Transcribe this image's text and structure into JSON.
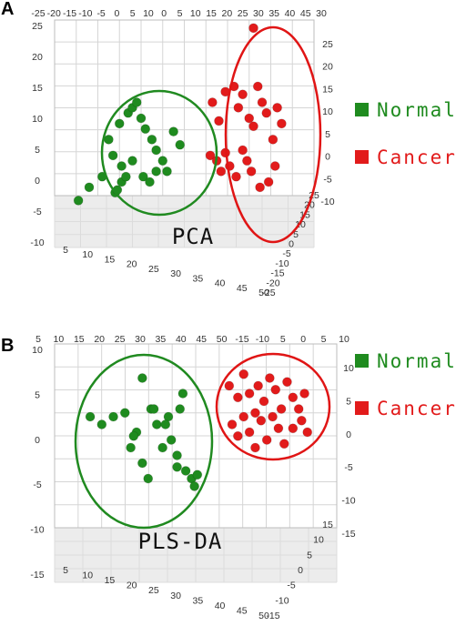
{
  "colors": {
    "normal": "#1f8b1f",
    "cancer": "#e21b1b",
    "normal_ellipse": "#208a20",
    "cancer_ellipse": "#e01515",
    "grid": "#d5d5d5",
    "floor": "#ececec"
  },
  "chart_data": [
    {
      "type": "scatter",
      "panel": "A",
      "method_label": "PCA",
      "grid": true,
      "legend": [
        {
          "label": "Normal",
          "color": "#1f8b1f"
        },
        {
          "label": "Cancer",
          "color": "#e21b1b"
        }
      ],
      "legend_placement": "right",
      "top_ticks": [
        "-25",
        "-20",
        "-15",
        "-10",
        "-5",
        "0",
        "5",
        "10",
        "0",
        "5",
        "10",
        "15",
        "20",
        "25",
        "30",
        "35",
        "40",
        "45",
        "30"
      ],
      "left_ticks": [
        "25",
        "20",
        "15",
        "10",
        "5",
        "0",
        "-5",
        "-10"
      ],
      "right_ticks": [
        "25",
        "20",
        "15",
        "10",
        "5",
        "0",
        "-5",
        "-10"
      ],
      "front_ticks": [
        "5",
        "10",
        "15",
        "20",
        "25",
        "30",
        "35",
        "40",
        "45",
        "50"
      ],
      "depth_ticks": [
        "25",
        "20",
        "15",
        "10",
        "5",
        "0",
        "-5",
        "-10",
        "-15",
        "-20",
        "-25"
      ],
      "series": [
        {
          "name": "Normal",
          "points": [
            [
              -14.5,
              -5.5
            ],
            [
              -12,
              -3
            ],
            [
              -9,
              -1
            ],
            [
              -7.5,
              6
            ],
            [
              -6.5,
              3
            ],
            [
              -5,
              9
            ],
            [
              -4.5,
              1
            ],
            [
              -3,
              11
            ],
            [
              -2,
              12
            ],
            [
              -1,
              13
            ],
            [
              0,
              10
            ],
            [
              1,
              8
            ],
            [
              2.5,
              6
            ],
            [
              3.5,
              4
            ],
            [
              5,
              2
            ],
            [
              6,
              0
            ],
            [
              7.5,
              7.5
            ],
            [
              9,
              5
            ],
            [
              -6,
              -4
            ],
            [
              -5.5,
              -3.5
            ],
            [
              -4.5,
              -2
            ],
            [
              -3.5,
              -1
            ],
            [
              -2,
              2
            ],
            [
              0.5,
              -1
            ],
            [
              2,
              -2
            ],
            [
              3.5,
              0
            ]
          ]
        },
        {
          "name": "Cancer",
          "points": [
            [
              26,
              27
            ],
            [
              16.5,
              13
            ],
            [
              18,
              9.5
            ],
            [
              19.5,
              15
            ],
            [
              21.5,
              16
            ],
            [
              22.5,
              12
            ],
            [
              23.5,
              14.5
            ],
            [
              25,
              10
            ],
            [
              26,
              8.5
            ],
            [
              27,
              16
            ],
            [
              28,
              13
            ],
            [
              29,
              11
            ],
            [
              30.5,
              6
            ],
            [
              31.5,
              12
            ],
            [
              32.5,
              9
            ],
            [
              16,
              3
            ],
            [
              17.5,
              2
            ],
            [
              18.5,
              0
            ],
            [
              19.5,
              3.5
            ],
            [
              20.5,
              1
            ],
            [
              22,
              -1
            ],
            [
              23.5,
              4
            ],
            [
              24.5,
              2
            ],
            [
              25.5,
              0
            ],
            [
              27.5,
              -3
            ],
            [
              29.5,
              -2
            ],
            [
              31,
              1
            ]
          ]
        }
      ]
    },
    {
      "type": "scatter",
      "panel": "B",
      "method_label": "PLS-DA",
      "grid": true,
      "legend": [
        {
          "label": "Normal",
          "color": "#1f8b1f"
        },
        {
          "label": "Cancer",
          "color": "#e21b1b"
        }
      ],
      "legend_placement": "right",
      "top_ticks": [
        "5",
        "10",
        "15",
        "20",
        "25",
        "30",
        "35",
        "40",
        "45",
        "50",
        "-15",
        "-10",
        "5",
        "0",
        "5",
        "10"
      ],
      "left_ticks": [
        "10",
        "5",
        "0",
        "-5",
        "-10",
        "-15"
      ],
      "right_ticks": [
        "10",
        "5",
        "0",
        "-5",
        "-10",
        "-15"
      ],
      "front_ticks": [
        "5",
        "10",
        "15",
        "20",
        "25",
        "30",
        "35",
        "40",
        "45",
        "50"
      ],
      "depth_ticks": [
        "15",
        "10",
        "5",
        "0",
        "-5",
        "-10",
        "-15"
      ],
      "series": [
        {
          "name": "Normal",
          "points": [
            [
              -9,
              3
            ],
            [
              -7,
              2
            ],
            [
              -5,
              3
            ],
            [
              -3,
              3.5
            ],
            [
              -1,
              1
            ],
            [
              0,
              8
            ],
            [
              1.5,
              4
            ],
            [
              2.5,
              2
            ],
            [
              3.5,
              -1
            ],
            [
              4.5,
              3
            ],
            [
              5,
              0
            ],
            [
              6,
              -2
            ],
            [
              6.5,
              4
            ],
            [
              7,
              6
            ],
            [
              -2,
              -1
            ],
            [
              -1.5,
              0.5
            ],
            [
              0,
              -3
            ],
            [
              1,
              -5
            ],
            [
              2,
              4
            ],
            [
              4,
              2
            ],
            [
              6,
              -3.5
            ],
            [
              7.5,
              -4
            ],
            [
              8.5,
              -5
            ],
            [
              9,
              -6
            ],
            [
              9.5,
              -4.5
            ]
          ]
        },
        {
          "name": "Cancer",
          "points": [
            [
              15,
              7
            ],
            [
              16.5,
              5.5
            ],
            [
              17.5,
              8.5
            ],
            [
              18.5,
              6
            ],
            [
              19.5,
              3.5
            ],
            [
              20,
              7
            ],
            [
              21,
              5
            ],
            [
              22,
              8
            ],
            [
              23,
              6.5
            ],
            [
              24,
              4
            ],
            [
              25,
              7.5
            ],
            [
              26,
              5.5
            ],
            [
              27,
              4
            ],
            [
              28,
              6
            ],
            [
              15.5,
              2
            ],
            [
              16.5,
              0.5
            ],
            [
              17.5,
              3
            ],
            [
              18.5,
              1
            ],
            [
              19.5,
              -1
            ],
            [
              20.5,
              2.5
            ],
            [
              21.5,
              0
            ],
            [
              22.5,
              3
            ],
            [
              23.5,
              1.5
            ],
            [
              24.5,
              -0.5
            ],
            [
              26,
              1.5
            ],
            [
              27.5,
              2.5
            ],
            [
              28.5,
              1
            ]
          ]
        }
      ]
    }
  ]
}
